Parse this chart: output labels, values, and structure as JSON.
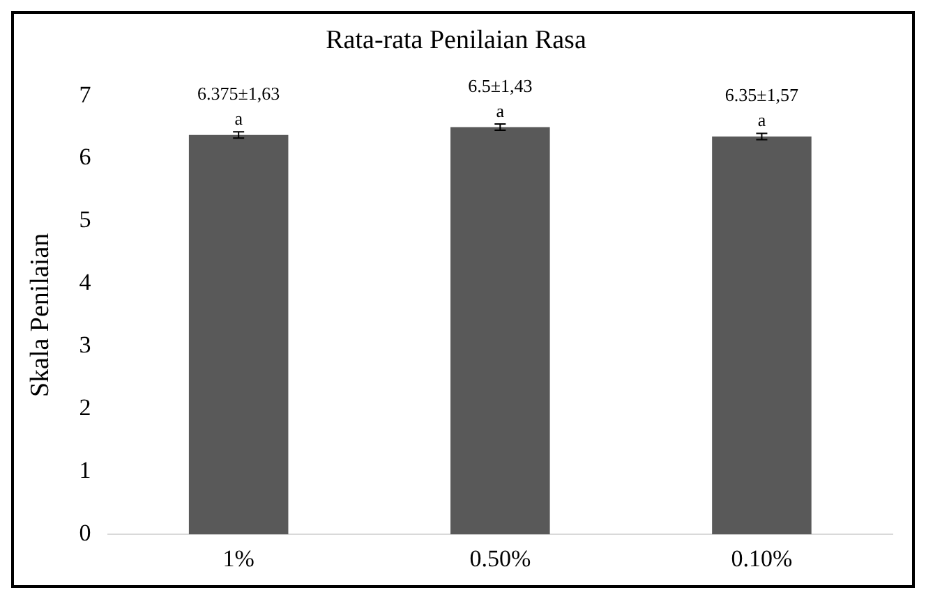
{
  "chart_data": {
    "type": "bar",
    "title": "Rata-rata Penilaian Rasa",
    "ylabel": "Skala Penilaian",
    "categories": [
      "1%",
      "0.50%",
      "0.10%"
    ],
    "values": [
      6.375,
      6.5,
      6.35
    ],
    "errors": [
      0.05,
      0.05,
      0.05
    ],
    "value_labels": [
      "6.375±1,63",
      "6.5±1,43",
      "6.35±1,57"
    ],
    "annotations": [
      {
        "text": "a",
        "x": "1%",
        "y": 6.425
      },
      {
        "text": "a",
        "x": "0.50%",
        "y": 6.55
      },
      {
        "text": "a",
        "x": "0.10%",
        "y": 6.4
      }
    ],
    "color": "#595959",
    "ylim": [
      0,
      7
    ],
    "yticks": [
      0,
      1,
      2,
      3,
      4,
      5,
      6,
      7
    ],
    "grid": false,
    "legend": false
  }
}
